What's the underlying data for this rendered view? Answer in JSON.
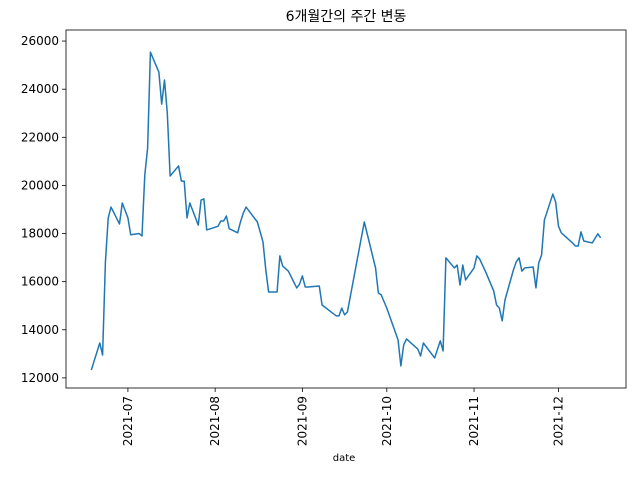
{
  "chart_data": {
    "type": "line",
    "title": "6개월간의 주간 변동",
    "x_label": "date",
    "x": [
      "2021-06-18",
      "2021-06-21",
      "2021-06-22",
      "2021-06-23",
      "2021-06-24",
      "2021-06-25",
      "2021-06-28",
      "2021-06-29",
      "2021-07-01",
      "2021-07-02",
      "2021-07-05",
      "2021-07-06",
      "2021-07-07",
      "2021-07-08",
      "2021-07-09",
      "2021-07-12",
      "2021-07-13",
      "2021-07-14",
      "2021-07-15",
      "2021-07-16",
      "2021-07-19",
      "2021-07-20",
      "2021-07-21",
      "2021-07-22",
      "2021-07-23",
      "2021-07-26",
      "2021-07-27",
      "2021-07-28",
      "2021-07-29",
      "2021-08-02",
      "2021-08-03",
      "2021-08-04",
      "2021-08-05",
      "2021-08-06",
      "2021-08-09",
      "2021-08-10",
      "2021-08-11",
      "2021-08-12",
      "2021-08-16",
      "2021-08-17",
      "2021-08-18",
      "2021-08-19",
      "2021-08-20",
      "2021-08-23",
      "2021-08-24",
      "2021-08-25",
      "2021-08-27",
      "2021-08-30",
      "2021-08-31",
      "2021-09-01",
      "2021-09-02",
      "2021-09-03",
      "2021-09-07",
      "2021-09-08",
      "2021-09-13",
      "2021-09-14",
      "2021-09-15",
      "2021-09-16",
      "2021-09-17",
      "2021-09-23",
      "2021-09-27",
      "2021-09-28",
      "2021-09-29",
      "2021-10-01",
      "2021-10-05",
      "2021-10-06",
      "2021-10-07",
      "2021-10-08",
      "2021-10-12",
      "2021-10-13",
      "2021-10-14",
      "2021-10-18",
      "2021-10-20",
      "2021-10-21",
      "2021-10-22",
      "2021-10-25",
      "2021-10-26",
      "2021-10-27",
      "2021-10-28",
      "2021-10-29",
      "2021-11-01",
      "2021-11-02",
      "2021-11-03",
      "2021-11-05",
      "2021-11-08",
      "2021-11-09",
      "2021-11-10",
      "2021-11-11",
      "2021-11-12",
      "2021-11-15",
      "2021-11-16",
      "2021-11-17",
      "2021-11-18",
      "2021-11-19",
      "2021-11-22",
      "2021-11-23",
      "2021-11-24",
      "2021-11-25",
      "2021-11-26",
      "2021-11-29",
      "2021-11-30",
      "2021-12-01",
      "2021-12-02",
      "2021-12-06",
      "2021-12-07",
      "2021-12-08",
      "2021-12-09",
      "2021-12-10",
      "2021-12-13",
      "2021-12-15",
      "2021-12-16"
    ],
    "series": [
      {
        "color": "#1f77b4",
        "values": [
          12330,
          13450,
          12950,
          16800,
          18650,
          19100,
          18400,
          19270,
          18650,
          17950,
          18000,
          17900,
          20430,
          21550,
          25540,
          24710,
          23380,
          24380,
          23000,
          20390,
          20810,
          20180,
          20180,
          18650,
          19270,
          18350,
          19390,
          19440,
          18150,
          18300,
          18520,
          18520,
          18730,
          18200,
          18030,
          18480,
          18850,
          19100,
          18480,
          18070,
          17650,
          16490,
          15570,
          15570,
          17070,
          16650,
          16440,
          15740,
          15900,
          16240,
          15780,
          15780,
          15820,
          15030,
          14580,
          14580,
          14900,
          14620,
          14740,
          18480,
          16570,
          15530,
          15450,
          14900,
          13580,
          12500,
          13370,
          13620,
          13200,
          12910,
          13450,
          12830,
          13540,
          13120,
          16990,
          16570,
          16690,
          15860,
          16690,
          16070,
          16570,
          17070,
          16940,
          16440,
          15610,
          15030,
          14900,
          14370,
          15240,
          16490,
          16820,
          16990,
          16440,
          16570,
          16610,
          15740,
          16780,
          17110,
          18560,
          19640,
          19310,
          18310,
          18030,
          17610,
          17480,
          17480,
          18070,
          17690,
          17610,
          17990,
          17820
        ]
      }
    ],
    "xlim": [
      "2021-06-09",
      "2021-12-25"
    ],
    "xticks": [
      {
        "value": "2021-07-01",
        "label": "2021-07"
      },
      {
        "value": "2021-08-01",
        "label": "2021-08"
      },
      {
        "value": "2021-09-01",
        "label": "2021-09"
      },
      {
        "value": "2021-10-01",
        "label": "2021-10"
      },
      {
        "value": "2021-11-01",
        "label": "2021-11"
      },
      {
        "value": "2021-12-01",
        "label": "2021-12"
      }
    ],
    "ylim": [
      11580,
      26460
    ],
    "yticks": [
      12000,
      14000,
      16000,
      18000,
      20000,
      22000,
      24000,
      26000
    ]
  }
}
